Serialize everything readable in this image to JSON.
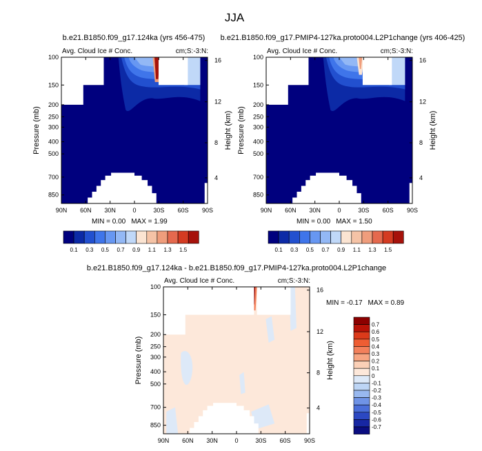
{
  "page_title": "JJA",
  "chart_data": [
    {
      "type": "heatmap",
      "id": "p1",
      "title": "b.e21.B1850.f09_g17.124ka (yrs 456-475)",
      "left_label": "Avg. Cloud Ice # Conc.",
      "right_label": "cm;S:-3:N:",
      "xlabel": "",
      "ylabel": "Pressure (mb)",
      "y2label": "Height (km)",
      "x_ticks": [
        "90N",
        "60N",
        "30N",
        "0",
        "30S",
        "60S",
        "90S"
      ],
      "y_ticks": [
        "100",
        "150",
        "200",
        "250",
        "300",
        "400",
        "500",
        "700",
        "850"
      ],
      "y2_ticks": [
        "16",
        "12",
        "8",
        "4"
      ],
      "min_label": "MIN = ",
      "min_value": "0.00",
      "max_label": "MAX = ",
      "max_value": "1.99",
      "levels": [
        "0.1",
        "0.3",
        "0.5",
        "0.7",
        "0.9",
        "1.1",
        "1.3",
        "1.5"
      ]
    },
    {
      "type": "heatmap",
      "id": "p2",
      "title": "b.e21.B1850.f09_g17.PMIP4-127ka.proto004.L2P1change (yrs 406-425)",
      "left_label": "Avg. Cloud Ice # Conc.",
      "right_label": "cm;S:-3:N:",
      "xlabel": "",
      "ylabel": "Pressure (mb)",
      "y2label": "Height (km)",
      "x_ticks": [
        "90N",
        "60N",
        "30N",
        "0",
        "30S",
        "60S",
        "90S"
      ],
      "y_ticks": [
        "100",
        "150",
        "200",
        "250",
        "300",
        "400",
        "500",
        "700",
        "850"
      ],
      "y2_ticks": [
        "16",
        "12",
        "8",
        "4"
      ],
      "min_label": "MIN = ",
      "min_value": "0.00",
      "max_label": "MAX = ",
      "max_value": "1.50",
      "levels": [
        "0.1",
        "0.3",
        "0.5",
        "0.7",
        "0.9",
        "1.1",
        "1.3",
        "1.5"
      ]
    },
    {
      "type": "heatmap",
      "id": "p3",
      "title": "b.e21.B1850.f09_g17.124ka - b.e21.B1850.f09_g17.PMIP4-127ka.proto004.L2P1change",
      "left_label": "Avg. Cloud Ice # Conc.",
      "right_label": "cm;S:-3:N:",
      "xlabel": "",
      "ylabel": "Pressure (mb)",
      "y2label": "Height (km)",
      "x_ticks": [
        "90N",
        "60N",
        "30N",
        "0",
        "30S",
        "60S",
        "90S"
      ],
      "y_ticks": [
        "100",
        "150",
        "200",
        "250",
        "300",
        "400",
        "500",
        "700",
        "850"
      ],
      "y2_ticks": [
        "16",
        "12",
        "8",
        "4"
      ],
      "min_label": "MIN = ",
      "min_value": "-0.17",
      "max_label": "MAX = ",
      "max_value": "0.89",
      "levels": [
        "0.7",
        "0.6",
        "0.5",
        "0.4",
        "0.3",
        "0.2",
        "0.1",
        "0",
        "-0.1",
        "-0.2",
        "-0.3",
        "-0.4",
        "-0.5",
        "-0.6",
        "-0.7"
      ]
    }
  ],
  "colors": {
    "seq": [
      "#00007e",
      "#0c2aa6",
      "#2250cf",
      "#3f75ea",
      "#6797f2",
      "#93b8f5",
      "#c0d8f8",
      "#fbe4d2",
      "#f5c3a6",
      "#ef9d7c",
      "#e5694e",
      "#d43b22",
      "#a6120b"
    ],
    "diverging": [
      "#8c0000",
      "#b81207",
      "#dc3a1a",
      "#ee5d33",
      "#f3805b",
      "#f7a582",
      "#fbd0b7",
      "#fde8da",
      "#dde9f8",
      "#bdd5f5",
      "#98b8ef",
      "#6f93e6",
      "#4a6ed9",
      "#2c48c2",
      "#1727a3",
      "#0a0d80"
    ],
    "missing": "#ffffff",
    "seq_fill": "#00007e",
    "diff_fill": "#fde8da"
  }
}
